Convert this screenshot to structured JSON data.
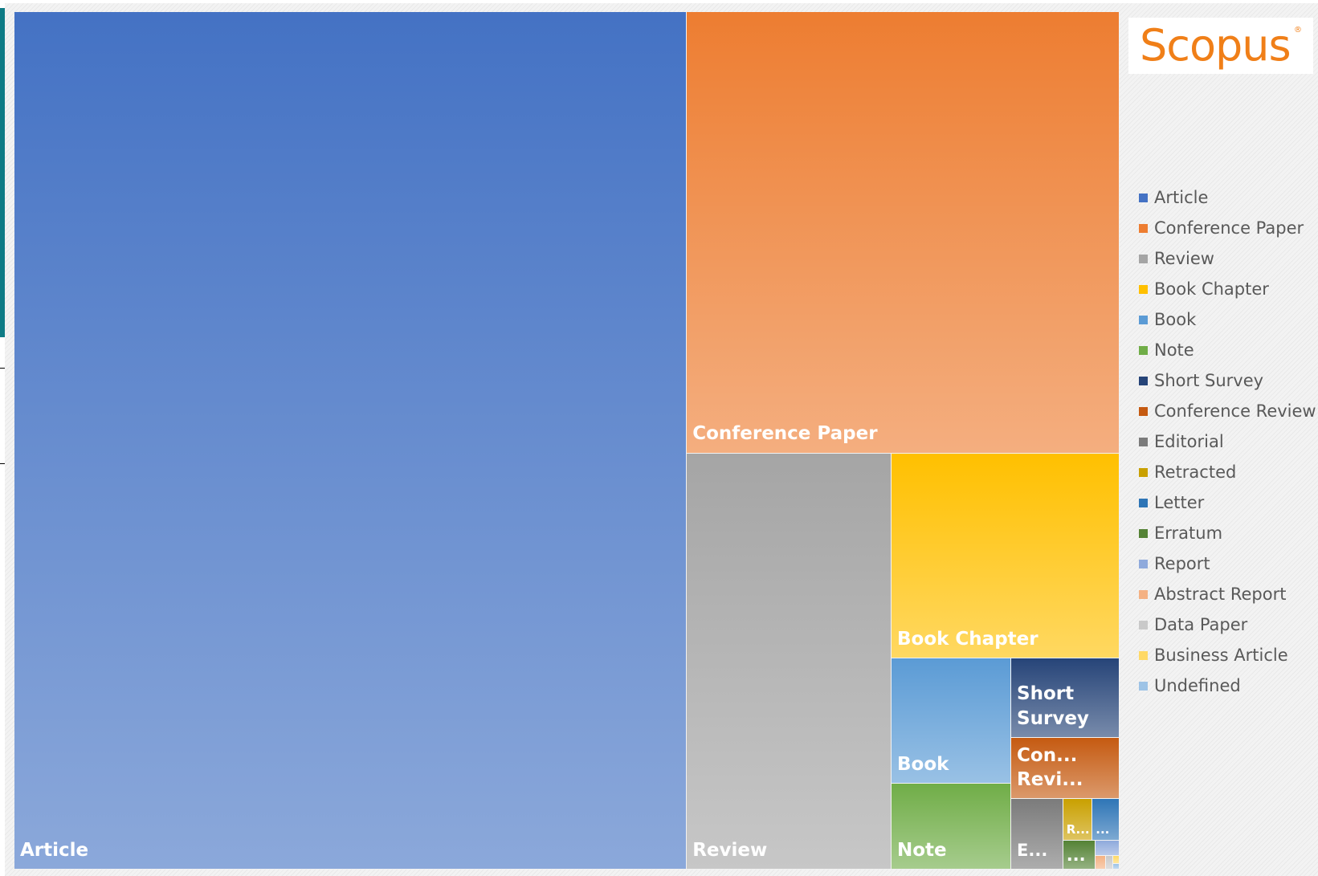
{
  "logo": {
    "text": "Scopus",
    "mark": "®",
    "color": "#f07f18"
  },
  "chart_data": {
    "type": "treemap",
    "categories": [
      "Article",
      "Conference Paper",
      "Review",
      "Book Chapter",
      "Book",
      "Note",
      "Short Survey",
      "Conference Review",
      "Editorial",
      "Retracted",
      "Letter",
      "Erratum",
      "Report",
      "Abstract Report",
      "Data Paper",
      "Business Article",
      "Undefined"
    ],
    "values": [
      61.6,
      20.4,
      9.1,
      5.0,
      1.6,
      1.1,
      0.92,
      0.71,
      0.39,
      0.13,
      0.12,
      0.1,
      0.04,
      0.015,
      0.01,
      0.005,
      0.004
    ],
    "tile_labels": [
      "Article",
      "Conference Paper",
      "Review",
      "Book Chapter",
      "Book",
      "Note",
      "Short\nSurvey",
      "Con...\nRevi...",
      "E...",
      "R...",
      "...",
      "...",
      "",
      "",
      "",
      "",
      ""
    ],
    "colors": [
      "#4472c4",
      "#ed7d31",
      "#a5a5a5",
      "#ffc000",
      "#5b9bd5",
      "#70ad47",
      "#264478",
      "#c55a11",
      "#7b7b7b",
      "#c9a000",
      "#2e75b6",
      "#548235",
      "#8faadc",
      "#f4b183",
      "#c9c9c9",
      "#ffd966",
      "#9dc3e6"
    ],
    "legend_position": "right"
  }
}
